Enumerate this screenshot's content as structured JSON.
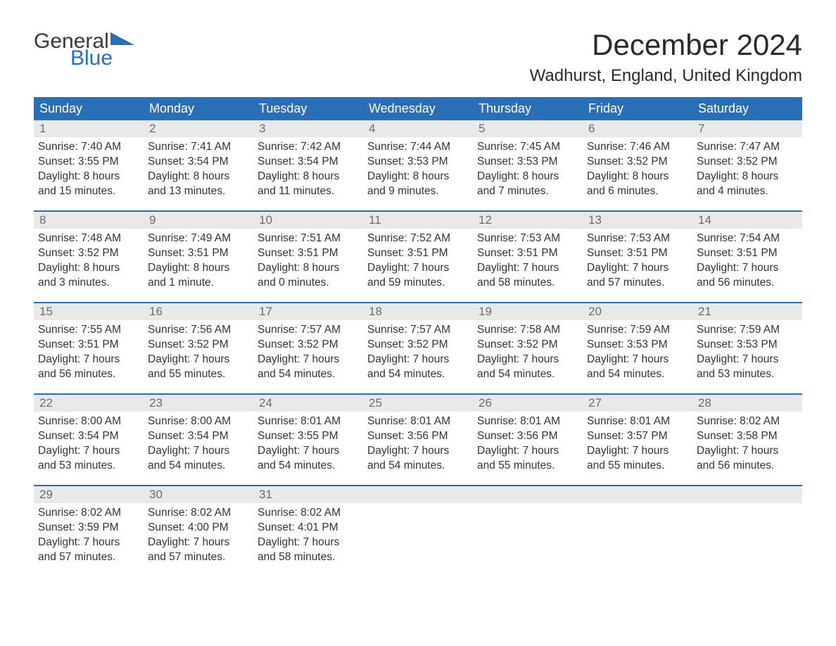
{
  "logo": {
    "text_general": "General",
    "text_blue": "Blue",
    "flag_color": "#2a6fb5"
  },
  "title": "December 2024",
  "location": "Wadhurst, England, United Kingdom",
  "colors": {
    "header_bg": "#2a6fb5",
    "header_text": "#ffffff",
    "daynum_bg": "#e9e9e9",
    "daynum_text": "#6b6b6b",
    "body_text": "#333333",
    "week_border": "#2a6fb5"
  },
  "day_headers": [
    "Sunday",
    "Monday",
    "Tuesday",
    "Wednesday",
    "Thursday",
    "Friday",
    "Saturday"
  ],
  "weeks": [
    [
      {
        "n": "1",
        "sunrise": "Sunrise: 7:40 AM",
        "sunset": "Sunset: 3:55 PM",
        "dl1": "Daylight: 8 hours",
        "dl2": "and 15 minutes."
      },
      {
        "n": "2",
        "sunrise": "Sunrise: 7:41 AM",
        "sunset": "Sunset: 3:54 PM",
        "dl1": "Daylight: 8 hours",
        "dl2": "and 13 minutes."
      },
      {
        "n": "3",
        "sunrise": "Sunrise: 7:42 AM",
        "sunset": "Sunset: 3:54 PM",
        "dl1": "Daylight: 8 hours",
        "dl2": "and 11 minutes."
      },
      {
        "n": "4",
        "sunrise": "Sunrise: 7:44 AM",
        "sunset": "Sunset: 3:53 PM",
        "dl1": "Daylight: 8 hours",
        "dl2": "and 9 minutes."
      },
      {
        "n": "5",
        "sunrise": "Sunrise: 7:45 AM",
        "sunset": "Sunset: 3:53 PM",
        "dl1": "Daylight: 8 hours",
        "dl2": "and 7 minutes."
      },
      {
        "n": "6",
        "sunrise": "Sunrise: 7:46 AM",
        "sunset": "Sunset: 3:52 PM",
        "dl1": "Daylight: 8 hours",
        "dl2": "and 6 minutes."
      },
      {
        "n": "7",
        "sunrise": "Sunrise: 7:47 AM",
        "sunset": "Sunset: 3:52 PM",
        "dl1": "Daylight: 8 hours",
        "dl2": "and 4 minutes."
      }
    ],
    [
      {
        "n": "8",
        "sunrise": "Sunrise: 7:48 AM",
        "sunset": "Sunset: 3:52 PM",
        "dl1": "Daylight: 8 hours",
        "dl2": "and 3 minutes."
      },
      {
        "n": "9",
        "sunrise": "Sunrise: 7:49 AM",
        "sunset": "Sunset: 3:51 PM",
        "dl1": "Daylight: 8 hours",
        "dl2": "and 1 minute."
      },
      {
        "n": "10",
        "sunrise": "Sunrise: 7:51 AM",
        "sunset": "Sunset: 3:51 PM",
        "dl1": "Daylight: 8 hours",
        "dl2": "and 0 minutes."
      },
      {
        "n": "11",
        "sunrise": "Sunrise: 7:52 AM",
        "sunset": "Sunset: 3:51 PM",
        "dl1": "Daylight: 7 hours",
        "dl2": "and 59 minutes."
      },
      {
        "n": "12",
        "sunrise": "Sunrise: 7:53 AM",
        "sunset": "Sunset: 3:51 PM",
        "dl1": "Daylight: 7 hours",
        "dl2": "and 58 minutes."
      },
      {
        "n": "13",
        "sunrise": "Sunrise: 7:53 AM",
        "sunset": "Sunset: 3:51 PM",
        "dl1": "Daylight: 7 hours",
        "dl2": "and 57 minutes."
      },
      {
        "n": "14",
        "sunrise": "Sunrise: 7:54 AM",
        "sunset": "Sunset: 3:51 PM",
        "dl1": "Daylight: 7 hours",
        "dl2": "and 56 minutes."
      }
    ],
    [
      {
        "n": "15",
        "sunrise": "Sunrise: 7:55 AM",
        "sunset": "Sunset: 3:51 PM",
        "dl1": "Daylight: 7 hours",
        "dl2": "and 56 minutes."
      },
      {
        "n": "16",
        "sunrise": "Sunrise: 7:56 AM",
        "sunset": "Sunset: 3:52 PM",
        "dl1": "Daylight: 7 hours",
        "dl2": "and 55 minutes."
      },
      {
        "n": "17",
        "sunrise": "Sunrise: 7:57 AM",
        "sunset": "Sunset: 3:52 PM",
        "dl1": "Daylight: 7 hours",
        "dl2": "and 54 minutes."
      },
      {
        "n": "18",
        "sunrise": "Sunrise: 7:57 AM",
        "sunset": "Sunset: 3:52 PM",
        "dl1": "Daylight: 7 hours",
        "dl2": "and 54 minutes."
      },
      {
        "n": "19",
        "sunrise": "Sunrise: 7:58 AM",
        "sunset": "Sunset: 3:52 PM",
        "dl1": "Daylight: 7 hours",
        "dl2": "and 54 minutes."
      },
      {
        "n": "20",
        "sunrise": "Sunrise: 7:59 AM",
        "sunset": "Sunset: 3:53 PM",
        "dl1": "Daylight: 7 hours",
        "dl2": "and 54 minutes."
      },
      {
        "n": "21",
        "sunrise": "Sunrise: 7:59 AM",
        "sunset": "Sunset: 3:53 PM",
        "dl1": "Daylight: 7 hours",
        "dl2": "and 53 minutes."
      }
    ],
    [
      {
        "n": "22",
        "sunrise": "Sunrise: 8:00 AM",
        "sunset": "Sunset: 3:54 PM",
        "dl1": "Daylight: 7 hours",
        "dl2": "and 53 minutes."
      },
      {
        "n": "23",
        "sunrise": "Sunrise: 8:00 AM",
        "sunset": "Sunset: 3:54 PM",
        "dl1": "Daylight: 7 hours",
        "dl2": "and 54 minutes."
      },
      {
        "n": "24",
        "sunrise": "Sunrise: 8:01 AM",
        "sunset": "Sunset: 3:55 PM",
        "dl1": "Daylight: 7 hours",
        "dl2": "and 54 minutes."
      },
      {
        "n": "25",
        "sunrise": "Sunrise: 8:01 AM",
        "sunset": "Sunset: 3:56 PM",
        "dl1": "Daylight: 7 hours",
        "dl2": "and 54 minutes."
      },
      {
        "n": "26",
        "sunrise": "Sunrise: 8:01 AM",
        "sunset": "Sunset: 3:56 PM",
        "dl1": "Daylight: 7 hours",
        "dl2": "and 55 minutes."
      },
      {
        "n": "27",
        "sunrise": "Sunrise: 8:01 AM",
        "sunset": "Sunset: 3:57 PM",
        "dl1": "Daylight: 7 hours",
        "dl2": "and 55 minutes."
      },
      {
        "n": "28",
        "sunrise": "Sunrise: 8:02 AM",
        "sunset": "Sunset: 3:58 PM",
        "dl1": "Daylight: 7 hours",
        "dl2": "and 56 minutes."
      }
    ],
    [
      {
        "n": "29",
        "sunrise": "Sunrise: 8:02 AM",
        "sunset": "Sunset: 3:59 PM",
        "dl1": "Daylight: 7 hours",
        "dl2": "and 57 minutes."
      },
      {
        "n": "30",
        "sunrise": "Sunrise: 8:02 AM",
        "sunset": "Sunset: 4:00 PM",
        "dl1": "Daylight: 7 hours",
        "dl2": "and 57 minutes."
      },
      {
        "n": "31",
        "sunrise": "Sunrise: 8:02 AM",
        "sunset": "Sunset: 4:01 PM",
        "dl1": "Daylight: 7 hours",
        "dl2": "and 58 minutes."
      },
      {
        "empty": true
      },
      {
        "empty": true
      },
      {
        "empty": true
      },
      {
        "empty": true
      }
    ]
  ]
}
